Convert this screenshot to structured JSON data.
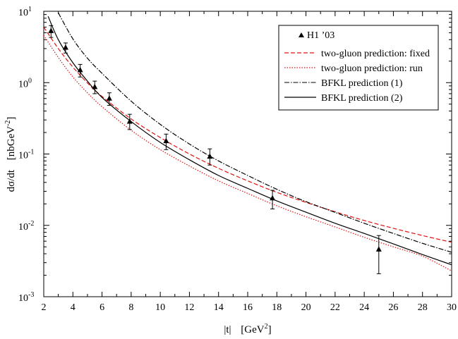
{
  "chart_data": {
    "type": "scatter",
    "title": "",
    "xlabel": "|t|",
    "xlabel_unit": "[GeV",
    "xlabel_unit_sup": "2",
    "xlabel_unit_close": "]",
    "ylabel": "dσ/dt",
    "ylabel_unit": "[nbGeV",
    "ylabel_unit_sup": "-2",
    "ylabel_unit_close": "]",
    "xlim": [
      2,
      30
    ],
    "ylim": [
      0.001,
      10
    ],
    "yscale": "log",
    "grid": false,
    "legend_position": "top-right",
    "x_ticks": [
      2,
      4,
      6,
      8,
      10,
      12,
      14,
      16,
      18,
      20,
      22,
      24,
      26,
      28,
      30
    ],
    "x_tick_labels": [
      "2",
      "4",
      "6",
      "8",
      "10",
      "12",
      "14",
      "16",
      "18",
      "20",
      "22",
      "24",
      "26",
      "28",
      "30"
    ],
    "y_ticks": [
      {
        "value": 10,
        "base": "10",
        "exp": "1"
      },
      {
        "value": 1,
        "base": "10",
        "exp": "0"
      },
      {
        "value": 0.1,
        "base": "10",
        "exp": "-1"
      },
      {
        "value": 0.01,
        "base": "10",
        "exp": "-2"
      },
      {
        "value": 0.001,
        "base": "10",
        "exp": "-3"
      }
    ],
    "points": {
      "name": "H1 ’03",
      "color": "#000000",
      "x": [
        2.5,
        3.5,
        4.5,
        5.5,
        6.5,
        7.9,
        10.4,
        13.4,
        17.7,
        25.0
      ],
      "y": [
        5.3,
        3.1,
        1.5,
        0.87,
        0.6,
        0.285,
        0.152,
        0.092,
        0.024,
        0.0046
      ],
      "y_low": [
        4.3,
        2.6,
        1.2,
        0.7,
        0.48,
        0.22,
        0.115,
        0.07,
        0.017,
        0.0021
      ],
      "y_high": [
        6.3,
        3.6,
        1.8,
        1.05,
        0.72,
        0.36,
        0.19,
        0.118,
        0.031,
        0.0072
      ]
    },
    "series": [
      {
        "name": "two-gluon prediction: fixed",
        "color": "#e01010",
        "style": "dashed",
        "x": [
          2,
          3,
          4,
          5,
          6,
          8,
          10,
          12,
          14,
          16,
          18,
          20,
          22,
          24,
          26,
          28,
          30
        ],
        "y": [
          6.0,
          3.0,
          1.65,
          0.99,
          0.64,
          0.31,
          0.17,
          0.1,
          0.063,
          0.042,
          0.029,
          0.021,
          0.0155,
          0.0117,
          0.0091,
          0.0072,
          0.0058
        ]
      },
      {
        "name": "two-gluon prediction: run",
        "color": "#e01010",
        "style": "dotted",
        "x": [
          2,
          3,
          4,
          5,
          6,
          8,
          10,
          12,
          14,
          16,
          18,
          20,
          22,
          24,
          26,
          28,
          30
        ],
        "y": [
          4.6,
          2.25,
          1.2,
          0.72,
          0.46,
          0.215,
          0.115,
          0.068,
          0.042,
          0.028,
          0.0188,
          0.0132,
          0.0095,
          0.0068,
          0.005,
          0.0037,
          0.0023
        ]
      },
      {
        "name": "BFKL prediction (1)",
        "color": "#000000",
        "style": "dashdot",
        "x": [
          3,
          4,
          5,
          6,
          8,
          10,
          12,
          14,
          16,
          18,
          20,
          22,
          24,
          26,
          28,
          30
        ],
        "y": [
          9.5,
          4.1,
          2.2,
          1.35,
          0.55,
          0.26,
          0.138,
          0.08,
          0.05,
          0.032,
          0.0215,
          0.0152,
          0.0107,
          0.0077,
          0.0056,
          0.0042
        ]
      },
      {
        "name": "BFKL prediction (2)",
        "color": "#000000",
        "style": "solid",
        "x": [
          2.3,
          3,
          4,
          5,
          6,
          8,
          10,
          12,
          14,
          16,
          18,
          20,
          22,
          24,
          26,
          28,
          30
        ],
        "y": [
          8.5,
          4.0,
          1.9,
          1.05,
          0.62,
          0.285,
          0.145,
          0.083,
          0.05,
          0.033,
          0.022,
          0.0153,
          0.0107,
          0.0077,
          0.0055,
          0.0039,
          0.0028
        ]
      }
    ]
  }
}
